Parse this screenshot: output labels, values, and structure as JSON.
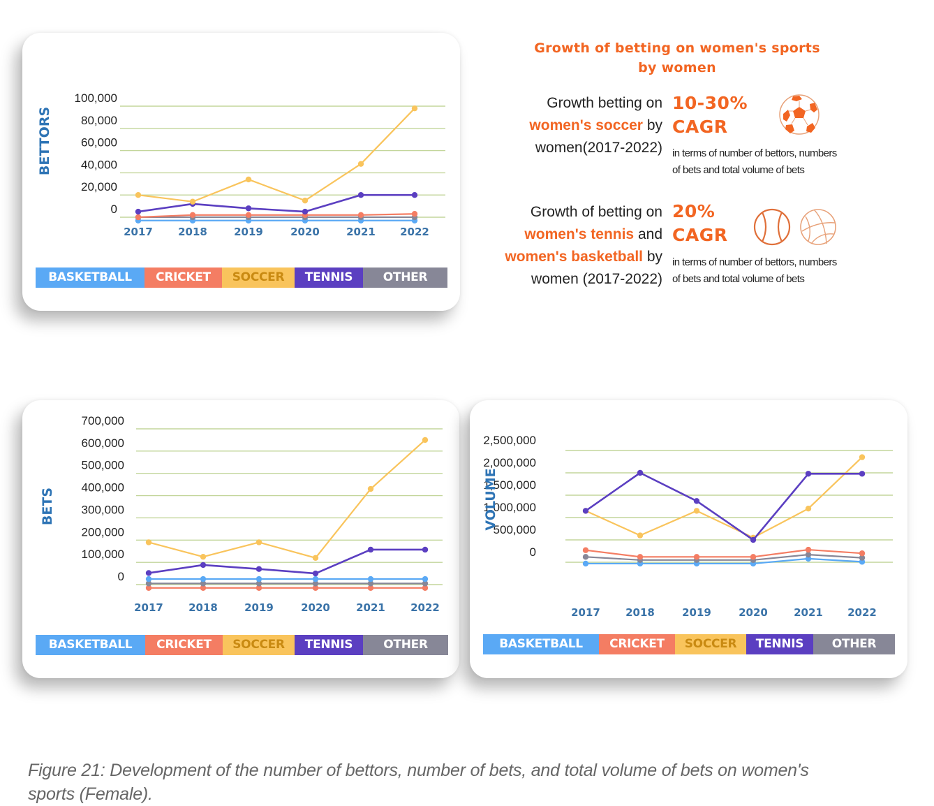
{
  "colors": {
    "basketball": "#5aa9f5",
    "cricket": "#f47d63",
    "soccer": "#f9c45c",
    "tennis": "#5b3fc1",
    "other": "#878797",
    "soccer_legend_text": "#c98a12",
    "grid": "#c3d69b",
    "accent": "#f26522",
    "axis_title": "#2e74b5"
  },
  "legend": [
    {
      "key": "basketball",
      "label": "BASKETBALL"
    },
    {
      "key": "cricket",
      "label": "CRICKET"
    },
    {
      "key": "soccer",
      "label": "SOCCER"
    },
    {
      "key": "tennis",
      "label": "TENNIS"
    },
    {
      "key": "other",
      "label": "OTHER"
    }
  ],
  "chart_data": [
    {
      "id": "bettors",
      "type": "line",
      "ylabel": "BETTORS",
      "xlabel": "",
      "categories": [
        "2017",
        "2018",
        "2019",
        "2020",
        "2021",
        "2022"
      ],
      "y_ticks": [
        "0",
        "20,000",
        "40,000",
        "60,000",
        "80,000",
        "100,000"
      ],
      "ylim": [
        0,
        100000
      ],
      "grid": true,
      "legend_position": "bottom",
      "series": [
        {
          "name": "BASKETBALL",
          "key": "basketball",
          "values": [
            -3000,
            -3000,
            -3000,
            -3000,
            -3000,
            -3000
          ]
        },
        {
          "name": "CRICKET",
          "key": "cricket",
          "values": [
            0,
            2000,
            2000,
            2000,
            2000,
            3000
          ]
        },
        {
          "name": "SOCCER",
          "key": "soccer",
          "values": [
            20000,
            14000,
            34000,
            15000,
            48000,
            98000
          ]
        },
        {
          "name": "TENNIS",
          "key": "tennis",
          "values": [
            5000,
            12000,
            8000,
            5000,
            20000,
            20000
          ]
        },
        {
          "name": "OTHER",
          "key": "other",
          "values": [
            0,
            0,
            0,
            0,
            0,
            0
          ]
        }
      ]
    },
    {
      "id": "bets",
      "type": "line",
      "ylabel": "BETS",
      "xlabel": "",
      "categories": [
        "2017",
        "2018",
        "2019",
        "2020",
        "2021",
        "2022"
      ],
      "y_ticks": [
        "0",
        "100,000",
        "200,000",
        "300,000",
        "400,000",
        "500,000",
        "600,000",
        "700,000"
      ],
      "ylim": [
        0,
        700000
      ],
      "grid": true,
      "legend_position": "bottom",
      "series": [
        {
          "name": "BASKETBALL",
          "key": "basketball",
          "values": [
            25000,
            25000,
            25000,
            25000,
            25000,
            25000
          ]
        },
        {
          "name": "CRICKET",
          "key": "cricket",
          "values": [
            -15000,
            -15000,
            -15000,
            -15000,
            -15000,
            -15000
          ]
        },
        {
          "name": "SOCCER",
          "key": "soccer",
          "values": [
            190000,
            125000,
            190000,
            120000,
            430000,
            650000
          ]
        },
        {
          "name": "TENNIS",
          "key": "tennis",
          "values": [
            52000,
            88000,
            70000,
            50000,
            157000,
            157000
          ]
        },
        {
          "name": "OTHER",
          "key": "other",
          "values": [
            5000,
            5000,
            5000,
            5000,
            5000,
            5000
          ]
        }
      ]
    },
    {
      "id": "volume",
      "type": "line",
      "ylabel": "VOLUME",
      "xlabel": "",
      "categories": [
        "2017",
        "2018",
        "2019",
        "2020",
        "2021",
        "2022"
      ],
      "y_ticks": [
        "0",
        "500,000",
        "1,000,000",
        "1,500,000",
        "2,000,000",
        "2,500,000"
      ],
      "ylim": [
        0,
        2500000
      ],
      "grid": true,
      "legend_position": "bottom",
      "series": [
        {
          "name": "BASKETBALL",
          "key": "basketball",
          "values": [
            -30000,
            -30000,
            -30000,
            -30000,
            80000,
            10000
          ]
        },
        {
          "name": "CRICKET",
          "key": "cricket",
          "values": [
            270000,
            120000,
            120000,
            120000,
            280000,
            200000
          ]
        },
        {
          "name": "SOCCER",
          "key": "soccer",
          "values": [
            1150000,
            600000,
            1150000,
            550000,
            1200000,
            2350000
          ]
        },
        {
          "name": "TENNIS",
          "key": "tennis",
          "values": [
            1150000,
            2000000,
            1370000,
            500000,
            1980000,
            1980000
          ]
        },
        {
          "name": "OTHER",
          "key": "other",
          "values": [
            120000,
            50000,
            50000,
            50000,
            170000,
            100000
          ]
        }
      ]
    }
  ],
  "infographic": {
    "headline_line1": "Growth of betting on women's sports",
    "headline_line2": "by women",
    "stat1": {
      "line1": "Growth betting on",
      "line2_highlight": "women's soccer",
      "line2_rest": " by",
      "line3": "women(2017-2022)",
      "value": "10-30%",
      "unit": "CAGR",
      "note_line1": "in terms of number of bettors, numbers",
      "note_line2": "of bets and total volume of bets",
      "icon": "soccer-ball-icon"
    },
    "stat2": {
      "line1": "Growth of betting on",
      "line2_highlight": "women's tennis",
      "line2_rest": " and",
      "line3_highlight": "women's basketball",
      "line3_rest": " by",
      "line4": "women (2017-2022)",
      "value": "20%",
      "unit": "CAGR",
      "note_line1": "in terms of number of bettors, numbers",
      "note_line2": "of bets and total volume of bets",
      "icons": [
        "tennis-ball-icon",
        "basketball-icon"
      ]
    }
  },
  "caption": {
    "line1": "Figure 21: Development of the number of bettors, number of bets, and total volume of bets on women's",
    "line2": "sports (Female)."
  }
}
